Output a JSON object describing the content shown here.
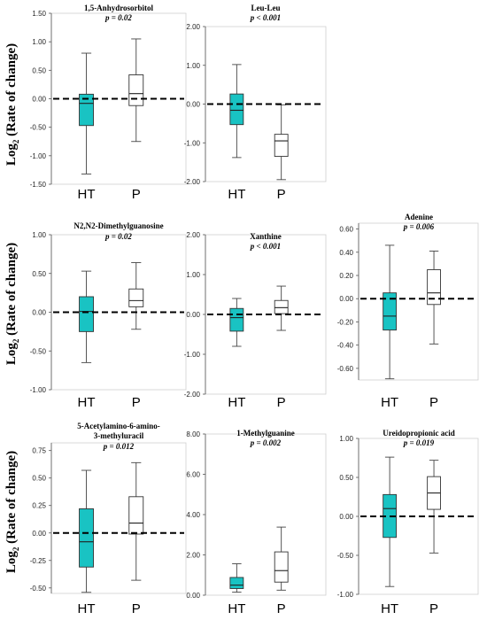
{
  "ylabel_prefix": "Log",
  "ylabel_sub": "2",
  "ylabel_suffix": " (Rate of change)",
  "colors": {
    "ht_fill": "#19c3c3",
    "p_fill": "#ffffff",
    "stroke": "#000000",
    "baseline": "#000000"
  },
  "chart_data": [
    {
      "type": "box",
      "title": "1,5-Anhydrosorbitol",
      "pvalue": "p = 0.02",
      "categories": [
        "HT",
        "P"
      ],
      "ylim": [
        -1.5,
        1.5
      ],
      "yticks": [
        -1.5,
        -1.0,
        -0.5,
        0.0,
        0.5,
        1.0,
        1.5
      ],
      "ytick_labels": [
        "-1.50",
        "-1.00",
        "-0.50",
        "0.00",
        "0.50",
        "1.00",
        "1.50"
      ],
      "reference_line": 0,
      "boxes": [
        {
          "category": "HT",
          "whisker_low": -1.32,
          "q1": -0.47,
          "median": -0.08,
          "q3": 0.08,
          "whisker_high": 0.8
        },
        {
          "category": "P",
          "whisker_low": -0.75,
          "q1": -0.12,
          "median": 0.09,
          "q3": 0.42,
          "whisker_high": 1.05
        }
      ]
    },
    {
      "type": "box",
      "title": "Leu-Leu",
      "pvalue": "p < 0.001",
      "categories": [
        "HT",
        "P"
      ],
      "ylim": [
        -2.0,
        2.0
      ],
      "yticks": [
        -2.0,
        -1.0,
        0.0,
        1.0,
        2.0
      ],
      "ytick_labels": [
        "-2.00",
        "-1.00",
        "0.00",
        "1.00",
        "2.00"
      ],
      "reference_line": 0,
      "boxes": [
        {
          "category": "HT",
          "whisker_low": -1.38,
          "q1": -0.53,
          "median": -0.16,
          "q3": 0.26,
          "whisker_high": 1.02
        },
        {
          "category": "P",
          "whisker_low": -1.95,
          "q1": -1.35,
          "median": -0.95,
          "q3": -0.78,
          "whisker_high": -0.02
        }
      ]
    },
    {
      "type": "box",
      "title": "N2,N2-Dimethylguanosine",
      "pvalue": "p = 0.02",
      "categories": [
        "HT",
        "P"
      ],
      "ylim": [
        -1.0,
        1.0
      ],
      "yticks": [
        -1.0,
        -0.5,
        0.0,
        0.5,
        1.0
      ],
      "ytick_labels": [
        "-1.00",
        "-0.50",
        "0.00",
        "0.50",
        "1.00"
      ],
      "reference_line": 0,
      "boxes": [
        {
          "category": "HT",
          "whisker_low": -0.65,
          "q1": -0.25,
          "median": 0.01,
          "q3": 0.2,
          "whisker_high": 0.53
        },
        {
          "category": "P",
          "whisker_low": -0.22,
          "q1": 0.07,
          "median": 0.15,
          "q3": 0.3,
          "whisker_high": 0.64
        }
      ]
    },
    {
      "type": "box",
      "title": "Xanthine",
      "pvalue": "p < 0.001",
      "categories": [
        "HT",
        "P"
      ],
      "ylim": [
        -2.0,
        2.0
      ],
      "yticks": [
        -2.0,
        -1.0,
        0.0,
        1.0,
        2.0
      ],
      "ytick_labels": [
        "-2.00",
        "-1.00",
        "0.00",
        "1.00",
        "2.00"
      ],
      "reference_line": 0,
      "boxes": [
        {
          "category": "HT",
          "whisker_low": -0.8,
          "q1": -0.42,
          "median": -0.08,
          "q3": 0.15,
          "whisker_high": 0.4
        },
        {
          "category": "P",
          "whisker_low": -0.4,
          "q1": 0.02,
          "median": 0.17,
          "q3": 0.35,
          "whisker_high": 0.71
        }
      ]
    },
    {
      "type": "box",
      "title": "Adenine",
      "pvalue": "p = 0.006",
      "categories": [
        "HT",
        "P"
      ],
      "ylim": [
        -0.7,
        0.65
      ],
      "yticks": [
        -0.6,
        -0.4,
        -0.2,
        0.0,
        0.2,
        0.4,
        0.6
      ],
      "ytick_labels": [
        "-0.60",
        "-0.40",
        "-0.20",
        "0.00",
        "0.20",
        "0.40",
        "0.60"
      ],
      "reference_line": 0,
      "boxes": [
        {
          "category": "HT",
          "whisker_low": -0.69,
          "q1": -0.27,
          "median": -0.15,
          "q3": 0.05,
          "whisker_high": 0.46
        },
        {
          "category": "P",
          "whisker_low": -0.39,
          "q1": -0.05,
          "median": 0.05,
          "q3": 0.25,
          "whisker_high": 0.41
        }
      ]
    },
    {
      "type": "box",
      "title": "5-Acetylamino-6-amino-3-methyluracil",
      "pvalue": "p = 0.012",
      "categories": [
        "HT",
        "P"
      ],
      "ylim": [
        -0.55,
        0.82
      ],
      "yticks": [
        -0.5,
        -0.25,
        0.0,
        0.25,
        0.5,
        0.75
      ],
      "ytick_labels": [
        "-0.50",
        "-0.25",
        "0.00",
        "0.25",
        "0.50",
        "0.75"
      ],
      "reference_line": 0,
      "boxes": [
        {
          "category": "HT",
          "whisker_low": -0.54,
          "q1": -0.31,
          "median": -0.08,
          "q3": 0.22,
          "whisker_high": 0.57
        },
        {
          "category": "P",
          "whisker_low": -0.43,
          "q1": -0.01,
          "median": 0.09,
          "q3": 0.33,
          "whisker_high": 0.64
        }
      ]
    },
    {
      "type": "box",
      "title": "1-Methylguanine",
      "pvalue": "p = 0.002",
      "categories": [
        "HT",
        "P"
      ],
      "ylim": [
        0,
        8
      ],
      "yticks": [
        0,
        2,
        4,
        6,
        8
      ],
      "ytick_labels": [
        "0.00",
        "2.00",
        "4.00",
        "6.00",
        "8.00"
      ],
      "reference_line": null,
      "boxes": [
        {
          "category": "HT",
          "whisker_low": 0.15,
          "q1": 0.33,
          "median": 0.5,
          "q3": 0.88,
          "whisker_high": 1.56
        },
        {
          "category": "P",
          "whisker_low": 0.25,
          "q1": 0.65,
          "median": 1.22,
          "q3": 2.15,
          "whisker_high": 3.38
        }
      ]
    },
    {
      "type": "box",
      "title": "Ureidopropionic acid",
      "pvalue": "p = 0.019",
      "categories": [
        "HT",
        "P"
      ],
      "ylim": [
        -1.0,
        1.0
      ],
      "yticks": [
        -1.0,
        -0.5,
        0.0,
        0.5,
        1.0
      ],
      "ytick_labels": [
        "-1.00",
        "-0.50",
        "0.00",
        "0.50",
        "1.00"
      ],
      "reference_line": 0,
      "boxes": [
        {
          "category": "HT",
          "whisker_low": -0.9,
          "q1": -0.27,
          "median": 0.1,
          "q3": 0.28,
          "whisker_high": 0.76
        },
        {
          "category": "P",
          "whisker_low": -0.47,
          "q1": 0.09,
          "median": 0.3,
          "q3": 0.51,
          "whisker_high": 0.72
        }
      ]
    }
  ]
}
